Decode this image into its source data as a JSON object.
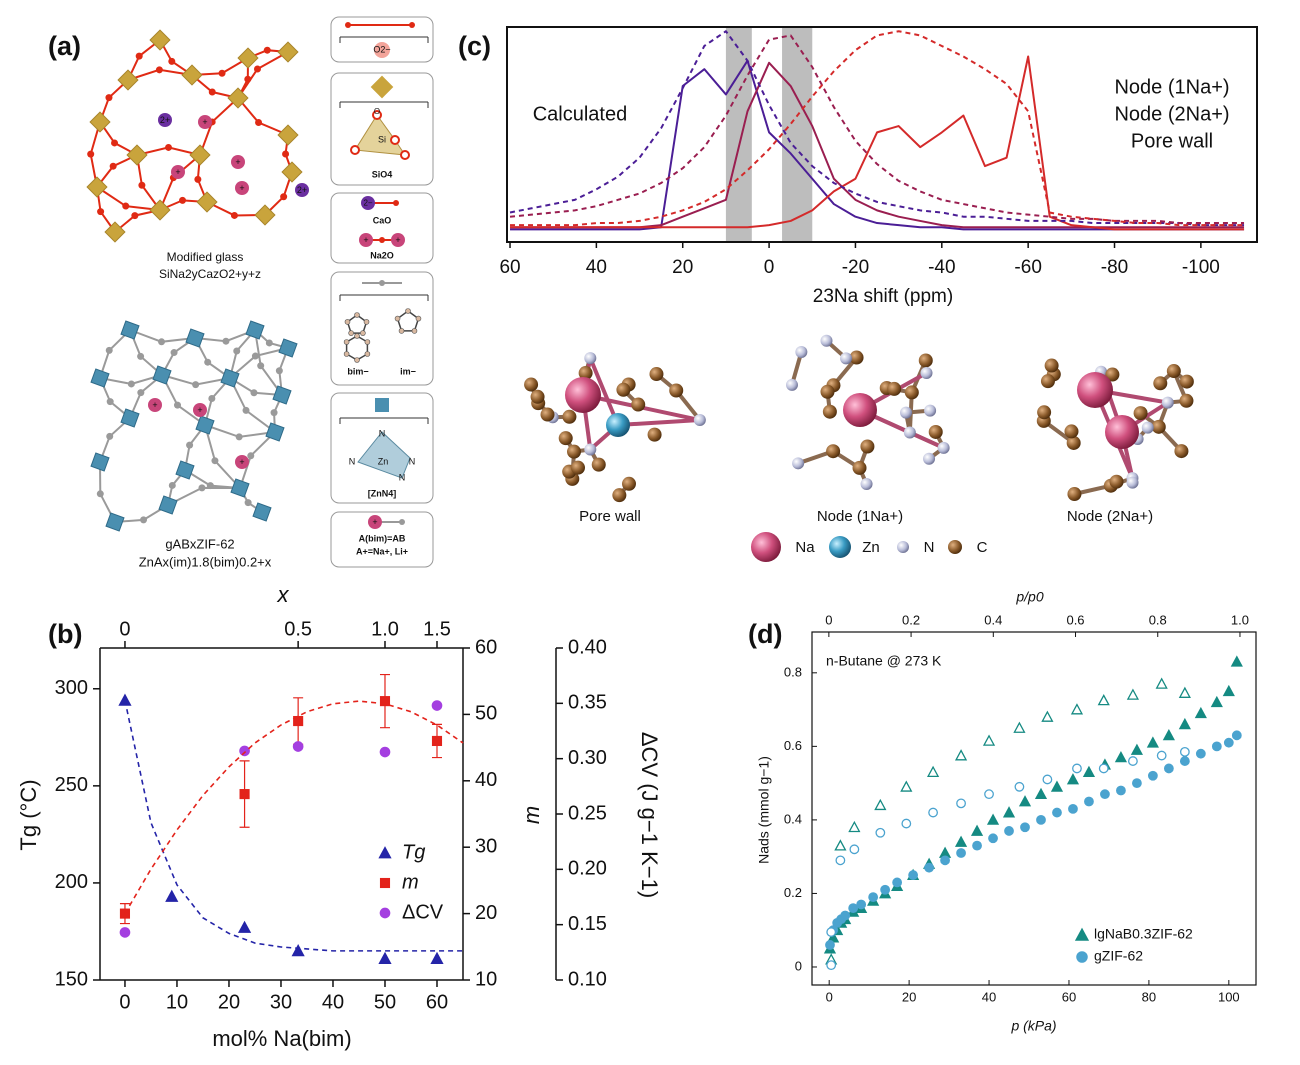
{
  "panel_labels": [
    "(a)",
    "(b)",
    "(c)",
    "(d)"
  ],
  "diagram": {
    "glass_label": "Modified glass",
    "glass_formula": "SiNa2yCazO2+y+z",
    "zif_label": "gABxZIF-62",
    "zif_formula": "ZnAx(im)1.8(bim)0.2+x",
    "ions": [
      "2+",
      "+",
      "2−"
    ],
    "atoms": [
      "O",
      "Si",
      "N",
      "Zn"
    ],
    "o_anion": "O2−",
    "units": [
      "SiO4",
      "CaO",
      "Na2O",
      "bim−",
      "im−",
      "[ZnN4]",
      "A(bim)=AB",
      "A+=Na+, Li+"
    ]
  },
  "chart_data": [
    {
      "type": "scatter",
      "xlabel": "mol% Na(bim)",
      "x2label": "x",
      "xlim": [
        -4.8,
        65
      ],
      "xticks": [
        0,
        10,
        20,
        30,
        40,
        50,
        60
      ],
      "x2ticks": [
        0,
        {
          "value": 33.3,
          "label": "0.5"
        },
        {
          "value": 50,
          "label": "1.0"
        },
        {
          "value": 60,
          "label": "1.5"
        }
      ],
      "ylabel": "Tg (°C)",
      "ylim": [
        150,
        321
      ],
      "yticks": [
        150,
        200,
        250,
        300
      ],
      "y2label": "m",
      "y2lim": [
        10,
        60
      ],
      "y2ticks": [
        10,
        20,
        30,
        40,
        50,
        60
      ],
      "y3label": "ΔCV (J g−1 K−1)",
      "y3lim": [
        0.1,
        0.4
      ],
      "y3ticks": [
        {
          "value": 0.1,
          "label": "0.10"
        },
        0.15,
        {
          "value": 0.2,
          "label": "0.20"
        },
        0.25,
        {
          "value": 0.3,
          "label": "0.30"
        },
        0.35,
        {
          "value": 0.4,
          "label": "0.40"
        }
      ],
      "legend": "center right",
      "series": [
        {
          "name": "Tg",
          "color": "#2424a8",
          "marker": "triangle",
          "axis": "y",
          "x": [
            0,
            9,
            23,
            33.3,
            50,
            60
          ],
          "values": [
            294,
            193,
            177,
            165,
            161,
            161
          ]
        },
        {
          "name": "m",
          "color": "#e3231b",
          "marker": "square",
          "axis": "y2",
          "x": [
            0,
            23,
            33.3,
            50,
            60
          ],
          "values": [
            20,
            38,
            49,
            52,
            46
          ],
          "errors": [
            1.5,
            5,
            3.5,
            4,
            2.5
          ]
        },
        {
          "name": "ΔCV",
          "color": "#a43fe0",
          "marker": "circle",
          "axis": "y3",
          "x": [
            0,
            23,
            33.3,
            50,
            60
          ],
          "values": [
            0.143,
            0.307,
            0.311,
            0.306,
            0.348
          ]
        },
        {
          "color": "#2424a8",
          "style": "dashed",
          "axis": "y",
          "x": [
            0,
            5,
            10,
            15,
            20,
            25,
            30,
            35,
            40,
            45,
            50,
            55,
            60,
            65
          ],
          "values": [
            294,
            231,
            199,
            182,
            174,
            169,
            167,
            166,
            165,
            165,
            165,
            165,
            165,
            165
          ]
        },
        {
          "color": "#e3231b",
          "style": "dashed",
          "axis": "y2",
          "x": [
            0,
            5,
            10,
            15,
            20,
            25,
            30,
            35,
            40,
            45,
            50,
            55,
            60,
            65
          ],
          "values": [
            20,
            26.7,
            32.6,
            37.8,
            42.1,
            45.7,
            48.4,
            50.4,
            51.6,
            52,
            51.6,
            50.4,
            48.4,
            45.7
          ]
        }
      ]
    },
    {
      "type": "line",
      "xlabel": "23Na shift (ppm)",
      "annotation": "Calculated",
      "xlim": [
        60.7,
        -113
      ],
      "xticks": [
        60,
        40,
        20,
        0,
        -20,
        -40,
        -60,
        -80,
        -100
      ],
      "ylim": [
        0,
        1.02
      ],
      "bands": [
        [
          10,
          4
        ],
        [
          -3,
          -10
        ]
      ],
      "band_color": "#bdbdbd",
      "legend": "upper right",
      "x": [
        60,
        55,
        50,
        45,
        40,
        35,
        30,
        25,
        20,
        15,
        10,
        5,
        0,
        -5,
        -10,
        -15,
        -20,
        -25,
        -30,
        -35,
        -40,
        -45,
        -50,
        -55,
        -60,
        -65,
        -70,
        -75,
        -80,
        -85,
        -90,
        -95,
        -100,
        -105,
        -110
      ],
      "series": [
        {
          "name": "Node (1Na+)",
          "color": "#4b1e96",
          "values": [
            0.06,
            0.06,
            0.06,
            0.06,
            0.06,
            0.06,
            0.06,
            0.07,
            0.74,
            0.82,
            0.7,
            0.86,
            0.52,
            0.42,
            0.3,
            0.18,
            0.12,
            0.09,
            0.08,
            0.07,
            0.07,
            0.06,
            0.06,
            0.06,
            0.06,
            0.06,
            0.06,
            0.06,
            0.06,
            0.06,
            0.06,
            0.06,
            0.06,
            0.06,
            0.06
          ]
        },
        {
          "name": "Node (2Na+)",
          "color": "#9a1e50",
          "values": [
            0.07,
            0.07,
            0.07,
            0.07,
            0.07,
            0.07,
            0.07,
            0.08,
            0.12,
            0.16,
            0.2,
            0.62,
            0.85,
            0.74,
            0.55,
            0.3,
            0.2,
            0.15,
            0.12,
            0.1,
            0.08,
            0.07,
            0.07,
            0.07,
            0.07,
            0.07,
            0.07,
            0.07,
            0.07,
            0.07,
            0.07,
            0.07,
            0.07,
            0.07,
            0.07
          ]
        },
        {
          "name": "Pore wall",
          "color": "#d42a2a",
          "values": [
            0.07,
            0.07,
            0.07,
            0.07,
            0.07,
            0.07,
            0.07,
            0.07,
            0.07,
            0.07,
            0.07,
            0.07,
            0.08,
            0.1,
            0.15,
            0.24,
            0.3,
            0.52,
            0.55,
            0.45,
            0.52,
            0.6,
            0.36,
            0.4,
            0.88,
            0.12,
            0.08,
            0.07,
            0.06,
            0.06,
            0.06,
            0.06,
            0.06,
            0.06,
            0.06
          ]
        },
        {
          "color": "#4b1e96",
          "style": "dashed",
          "values": [
            0.14,
            0.16,
            0.18,
            0.2,
            0.25,
            0.31,
            0.4,
            0.54,
            0.73,
            0.93,
            1.0,
            0.86,
            0.65,
            0.47,
            0.36,
            0.28,
            0.23,
            0.19,
            0.17,
            0.15,
            0.14,
            0.12,
            0.12,
            0.11,
            0.1,
            0.1,
            0.1,
            0.09,
            0.09,
            0.09,
            0.09,
            0.09,
            0.08,
            0.08,
            0.08
          ]
        },
        {
          "color": "#9a1e50",
          "style": "dashed",
          "values": [
            0.12,
            0.13,
            0.14,
            0.15,
            0.17,
            0.2,
            0.23,
            0.28,
            0.35,
            0.45,
            0.6,
            0.79,
            0.96,
            0.98,
            0.83,
            0.64,
            0.48,
            0.37,
            0.29,
            0.24,
            0.2,
            0.18,
            0.16,
            0.14,
            0.13,
            0.12,
            0.11,
            0.11,
            0.1,
            0.1,
            0.1,
            0.09,
            0.09,
            0.09,
            0.09
          ]
        },
        {
          "color": "#d42a2a",
          "style": "dashed",
          "values": [
            0.08,
            0.08,
            0.08,
            0.08,
            0.09,
            0.09,
            0.1,
            0.12,
            0.15,
            0.19,
            0.25,
            0.34,
            0.44,
            0.56,
            0.69,
            0.81,
            0.91,
            0.98,
            1.0,
            0.98,
            0.93,
            0.88,
            0.82,
            0.75,
            0.62,
            0.14,
            0.12,
            0.11,
            0.1,
            0.09,
            0.09,
            0.08,
            0.08,
            0.08,
            0.08
          ]
        }
      ]
    },
    {
      "type": "scatter",
      "xlabel": "p (kPa)",
      "x2label": "p/p0",
      "ylabel": "Nads (mmol g−1)",
      "annotation": "n-Butane @ 273 K",
      "xlim": [
        -4.3,
        106.8
      ],
      "xticks": [
        0,
        20,
        40,
        60,
        80,
        100
      ],
      "x2lim": [
        -0.041,
        1.039
      ],
      "x2ticks": [
        0,
        0.2,
        0.4,
        0.6,
        0.8,
        {
          "value": 1,
          "label": "1.0"
        }
      ],
      "ylim": [
        -0.049,
        0.911
      ],
      "yticks": [
        0,
        0.2,
        0.4,
        0.6,
        0.8
      ],
      "legend": "lower right",
      "series": [
        {
          "name": "lgNaB0.3ZIF-62",
          "color": "#158a82",
          "marker": "triangle",
          "filled": true,
          "x": [
            0.2,
            1,
            2,
            3,
            4,
            6,
            8,
            11,
            14,
            17,
            21,
            25,
            29,
            33,
            37,
            41,
            45,
            49,
            53,
            57,
            61,
            65,
            69,
            73,
            77,
            81,
            85,
            89,
            93,
            97,
            100,
            102
          ],
          "values": [
            0.05,
            0.08,
            0.1,
            0.12,
            0.13,
            0.15,
            0.16,
            0.18,
            0.2,
            0.22,
            0.25,
            0.28,
            0.31,
            0.34,
            0.37,
            0.4,
            0.42,
            0.45,
            0.47,
            0.49,
            0.51,
            0.53,
            0.55,
            0.57,
            0.59,
            0.61,
            0.63,
            0.66,
            0.69,
            0.72,
            0.75,
            0.83
          ]
        },
        {
          "name": "gZIF-62",
          "color": "#4ba3cf",
          "marker": "circle",
          "filled": true,
          "x": [
            0.2,
            1,
            2,
            3,
            4,
            6,
            8,
            11,
            14,
            17,
            21,
            25,
            29,
            33,
            37,
            41,
            45,
            49,
            53,
            57,
            61,
            65,
            69,
            73,
            77,
            81,
            85,
            89,
            93,
            97,
            100,
            102
          ],
          "values": [
            0.06,
            0.1,
            0.12,
            0.13,
            0.14,
            0.16,
            0.17,
            0.19,
            0.21,
            0.23,
            0.25,
            0.27,
            0.29,
            0.31,
            0.33,
            0.35,
            0.37,
            0.38,
            0.4,
            0.42,
            0.43,
            0.45,
            0.47,
            0.48,
            0.5,
            0.52,
            0.54,
            0.56,
            0.58,
            0.6,
            0.61,
            0.63
          ]
        },
        {
          "color": "#158a82",
          "marker": "triangle",
          "filled": false,
          "x": [
            0.5,
            2.8,
            6.3,
            12.8,
            19.3,
            26,
            33,
            40,
            47.6,
            54.6,
            62,
            68.7,
            76,
            83.2,
            89
          ],
          "values": [
            0.02,
            0.33,
            0.38,
            0.44,
            0.49,
            0.53,
            0.575,
            0.615,
            0.65,
            0.68,
            0.7,
            0.725,
            0.74,
            0.77,
            0.745
          ]
        },
        {
          "color": "#4ba3cf",
          "marker": "circle",
          "filled": false,
          "x": [
            0.5,
            0.5,
            2.8,
            6.3,
            12.8,
            19.3,
            26,
            33,
            40,
            47.6,
            54.6,
            62,
            68.7,
            76,
            83.2,
            89
          ],
          "values": [
            0.005,
            0.095,
            0.29,
            0.32,
            0.365,
            0.39,
            0.42,
            0.445,
            0.47,
            0.49,
            0.51,
            0.54,
            0.54,
            0.56,
            0.575,
            0.585
          ]
        }
      ]
    }
  ],
  "structures": {
    "labels": [
      "Pore wall",
      "Node (1Na+)",
      "Node (2Na+)"
    ],
    "key": [
      "Na",
      "Zn",
      "N",
      "C"
    ]
  }
}
